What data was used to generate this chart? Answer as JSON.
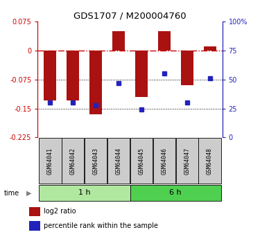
{
  "title": "GDS1707 / M200004760",
  "samples": [
    "GSM64041",
    "GSM64042",
    "GSM64043",
    "GSM64044",
    "GSM64045",
    "GSM64046",
    "GSM64047",
    "GSM64048"
  ],
  "log2_ratio": [
    -0.13,
    -0.13,
    -0.165,
    0.05,
    -0.12,
    0.05,
    -0.09,
    0.01
  ],
  "percentile_rank": [
    30,
    30,
    28,
    47,
    24,
    55,
    30,
    51
  ],
  "groups": [
    {
      "label": "1 h",
      "start": 0,
      "end": 4,
      "color": "#b0e8a0"
    },
    {
      "label": "6 h",
      "start": 4,
      "end": 8,
      "color": "#50d050"
    }
  ],
  "ylim_left": [
    -0.225,
    0.075
  ],
  "ylim_right": [
    0,
    100
  ],
  "yticks_left": [
    0.075,
    0,
    -0.075,
    -0.15,
    -0.225
  ],
  "yticks_right": [
    100,
    75,
    50,
    25,
    0
  ],
  "bar_color": "#aa1111",
  "dot_color": "#2222bb",
  "hline_color": "#cc0000",
  "grid_color": "#000000",
  "bg_color": "#ffffff",
  "sample_box_color": "#cccccc",
  "legend_labels": [
    "log2 ratio",
    "percentile rank within the sample"
  ]
}
